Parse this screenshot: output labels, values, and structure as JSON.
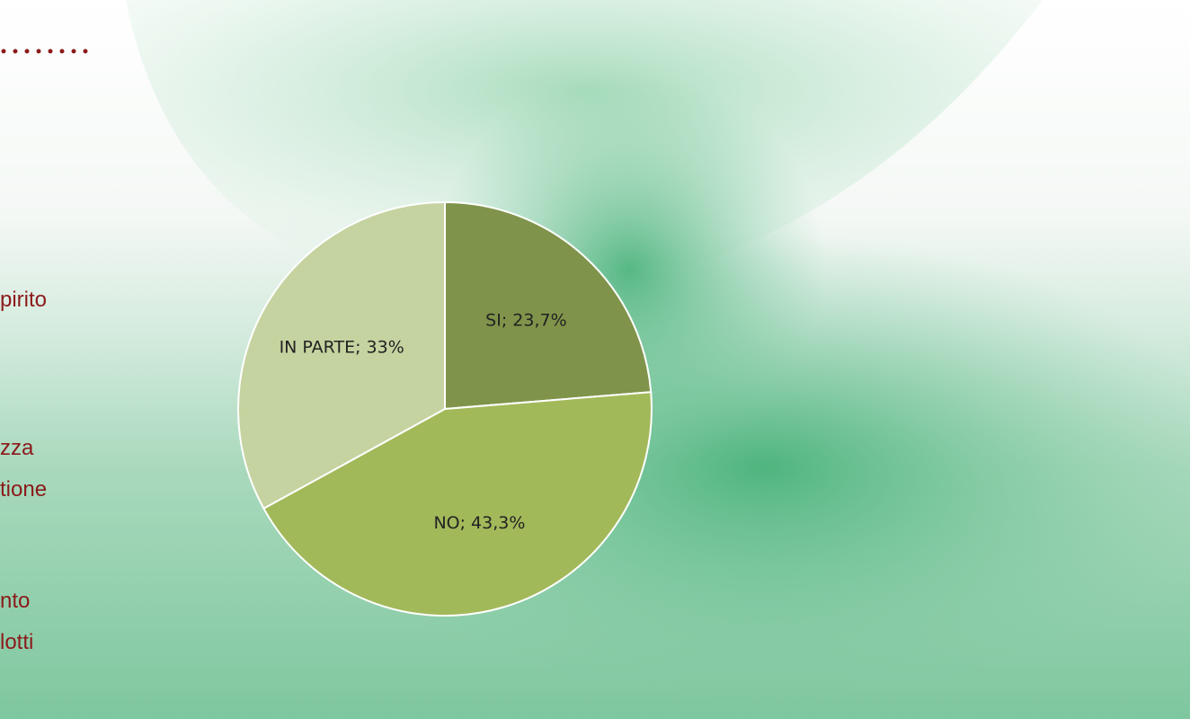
{
  "chart_data": {
    "type": "pie",
    "values": [
      23.7,
      43.3,
      33
    ],
    "value_labels": [
      "SI; 23,7%",
      "NO; 43,3%",
      "IN PARTE; 33%"
    ],
    "colors": [
      "#7f944a",
      "#a2b95a",
      "#c5d3a0"
    ]
  },
  "side_text": [
    "pirito",
    "zza",
    "tione",
    "nto",
    "lotti"
  ]
}
